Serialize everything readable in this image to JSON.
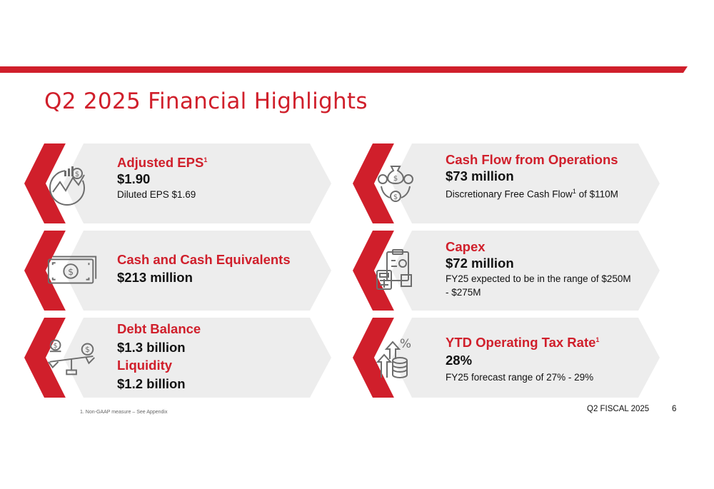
{
  "slide": {
    "title": "Q2 2025 Financial Highlights",
    "accent_color": "#d01f2b",
    "card_bg_color": "#ededed",
    "icon_color": "#6d6d6d"
  },
  "cards": [
    {
      "icon": "growth-chart-icon",
      "heading": "Adjusted EPS",
      "heading_sup": "1",
      "value": "$1.90",
      "sub": "Diluted EPS $1.69"
    },
    {
      "icon": "money-cycle-icon",
      "heading": "Cash Flow from Operations",
      "value": "$73 million",
      "sub_pre": "Discretionary Free Cash Flow",
      "sub_sup": "1",
      "sub_post": " of $110M"
    },
    {
      "icon": "cash-bills-icon",
      "heading": "Cash and Cash Equivalents",
      "value": "$213 million"
    },
    {
      "icon": "clipboard-calculator-icon",
      "heading": "Capex",
      "value": "$72 million",
      "sub": "FY25 expected to be in the range of $250M - $275M"
    },
    {
      "icon": "balance-scale-icon",
      "heading": "Debt Balance",
      "value": "$1.3 billion",
      "heading2": "Liquidity",
      "value2": "$1.2 billion"
    },
    {
      "icon": "percent-coins-icon",
      "heading": "YTD Operating Tax Rate",
      "heading_sup": "1",
      "value": "28%",
      "sub": "FY25 forecast range of 27% - 29%"
    }
  ],
  "footer": {
    "footnote": "1. Non-GAAP measure – See Appendix",
    "label": "Q2 FISCAL 2025",
    "page": "6"
  }
}
